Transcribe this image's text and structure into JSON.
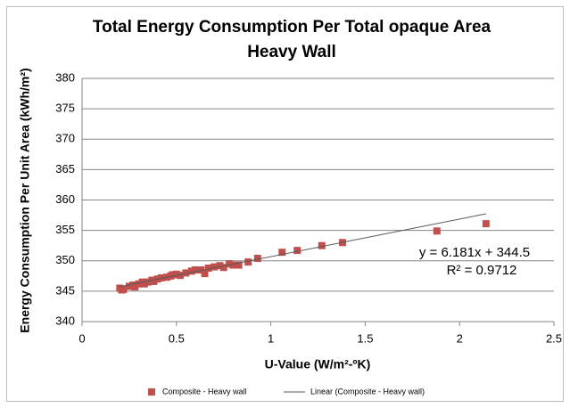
{
  "chart_data": {
    "type": "scatter",
    "title": [
      "Total Energy Consumption Per Total opaque Area",
      "Heavy Wall"
    ],
    "xlabel": "U-Value (W/m²-ºK)",
    "ylabel": "Energy Consumption Per Unit Area (kWh/m²)",
    "xlim": [
      0,
      2.5
    ],
    "xticks": [
      0,
      0.5,
      1,
      1.5,
      2,
      2.5
    ],
    "ylim": [
      340,
      380
    ],
    "yticks": [
      340,
      345,
      350,
      355,
      360,
      365,
      370,
      375,
      380
    ],
    "grid": true,
    "legend": "bottom",
    "series": [
      {
        "name": "Composite - Heavy wall",
        "color": "#c0504d",
        "x": [
          0.2,
          0.21,
          0.22,
          0.25,
          0.27,
          0.28,
          0.3,
          0.32,
          0.33,
          0.35,
          0.37,
          0.38,
          0.4,
          0.42,
          0.45,
          0.47,
          0.48,
          0.5,
          0.52,
          0.55,
          0.58,
          0.6,
          0.63,
          0.65,
          0.67,
          0.7,
          0.73,
          0.75,
          0.78,
          0.8,
          0.83,
          0.88,
          0.93,
          1.06,
          1.14,
          1.27,
          1.38,
          1.88,
          2.14
        ],
        "values": [
          345.5,
          345.2,
          345.3,
          345.8,
          346,
          345.7,
          346.2,
          346.5,
          346.2,
          346.5,
          346.8,
          346.6,
          347,
          347.2,
          347.3,
          347.5,
          347.7,
          347.8,
          347.6,
          348,
          348.3,
          348.5,
          348.5,
          347.9,
          348.8,
          349,
          349.2,
          348.9,
          349.5,
          349.3,
          349.3,
          349.8,
          350.4,
          351.4,
          351.7,
          352.5,
          353,
          354.9,
          356.1
        ]
      }
    ],
    "trendline": {
      "name": "Linear (Composite - Heavy wall)",
      "color": "#595959",
      "slope": 6.181,
      "intercept": 344.5,
      "equation": "y = 6.181x + 344.5",
      "r2_label": "R² = 0.9712"
    }
  }
}
